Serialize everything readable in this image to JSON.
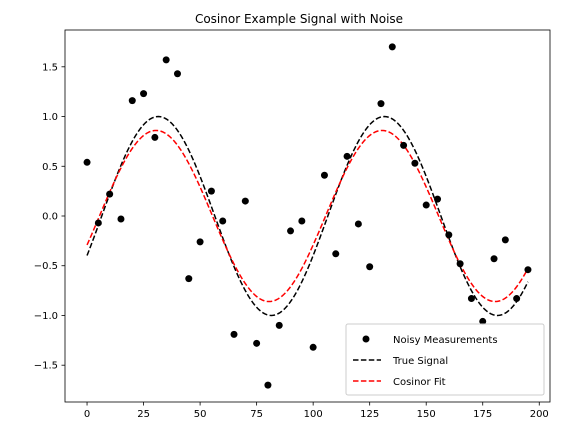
{
  "chart_data": {
    "type": "scatter",
    "title": "Cosinor Example Signal with Noise",
    "xlabel": "",
    "ylabel": "",
    "xlim": [
      -9.75,
      204.75
    ],
    "ylim": [
      -1.87,
      1.87
    ],
    "x_ticks": [
      0,
      25,
      50,
      75,
      100,
      125,
      150,
      175,
      200
    ],
    "y_ticks": [
      -1.5,
      -1.0,
      -0.5,
      0.0,
      0.5,
      1.0,
      1.5
    ],
    "y_tick_labels": [
      "−1.5",
      "−1.0",
      "−0.5",
      "0.0",
      "0.5",
      "1.0",
      "1.5"
    ],
    "grid": false,
    "legend_position": "lower-right",
    "measurements": {
      "name": "Noisy Measurements",
      "color": "#000000",
      "x": [
        0,
        5,
        10,
        15,
        20,
        25,
        30,
        35,
        40,
        45,
        50,
        55,
        60,
        65,
        70,
        75,
        80,
        85,
        90,
        95,
        100,
        105,
        110,
        115,
        120,
        125,
        130,
        135,
        140,
        145,
        150,
        155,
        160,
        165,
        170,
        175,
        180,
        185,
        190,
        195
      ],
      "y": [
        0.54,
        -0.07,
        0.22,
        -0.03,
        1.16,
        1.23,
        0.79,
        1.57,
        1.43,
        -0.63,
        -0.26,
        0.25,
        -0.05,
        -1.19,
        0.15,
        -1.28,
        -1.7,
        -1.1,
        -0.15,
        -0.05,
        -1.32,
        0.41,
        -0.38,
        0.6,
        -0.08,
        -0.51,
        1.13,
        1.7,
        0.71,
        0.53,
        0.11,
        0.17,
        -0.19,
        -0.48,
        -0.83,
        -1.06,
        -0.43,
        -0.24,
        -0.83,
        -0.54
      ]
    },
    "true_signal": {
      "name": "True Signal",
      "color": "#000000",
      "mesor": 0.0,
      "amplitude": 1.0,
      "period": 100,
      "acrophase": 31.5
    },
    "cosinor_fit": {
      "name": "Cosinor Fit",
      "color": "#ff0000",
      "mesor": 0.0,
      "amplitude": 0.86,
      "period": 100,
      "acrophase": 30.5
    },
    "curve_x_range": [
      0,
      195
    ]
  }
}
